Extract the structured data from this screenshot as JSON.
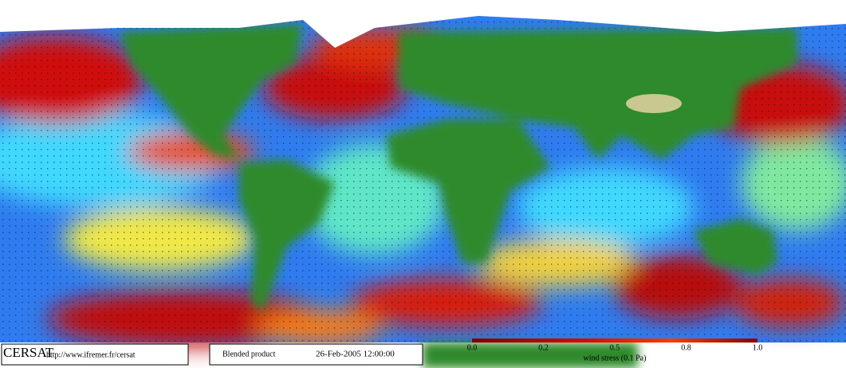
{
  "logo": {
    "name": "CERSAT",
    "url": "http://www.ifremer.fr/cersat"
  },
  "product": {
    "label": "Blended product",
    "date": "26-Feb-2005 12:00:00"
  },
  "colorbar": {
    "ticks": [
      "0.0",
      "0.2",
      "0.5",
      "0.8",
      "1.0"
    ],
    "label": "wind stress (0.1 Pa)"
  }
}
